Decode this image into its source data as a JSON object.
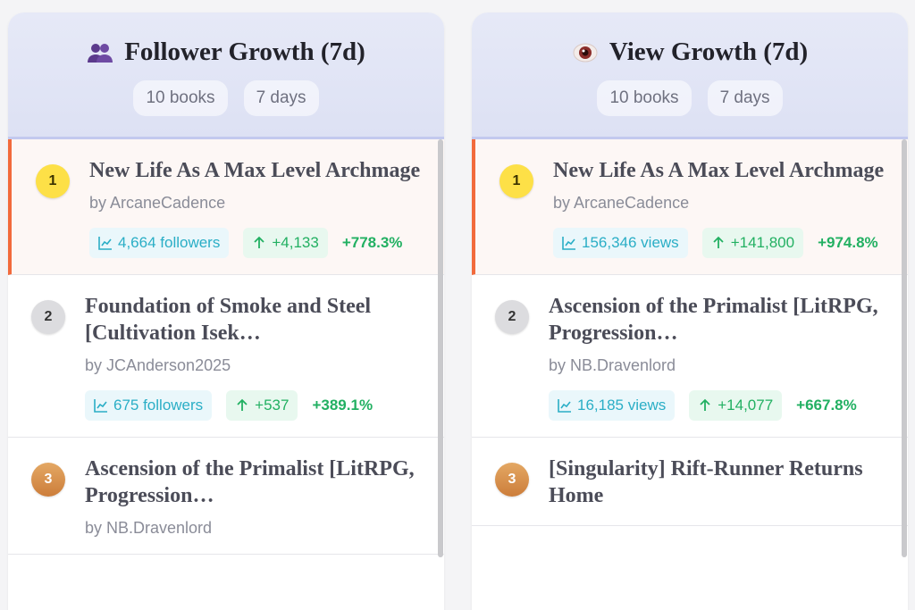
{
  "panels": [
    {
      "title": "Follower Growth (7d)",
      "icon": "people-icon",
      "chips": [
        "10 books",
        "7 days"
      ],
      "items": [
        {
          "rank": "1",
          "title": "New Life As A Max Level Archmage",
          "author": "by ArcaneCadence",
          "total": "4,664 followers",
          "gain": "+4,133",
          "pct": "+778.3%"
        },
        {
          "rank": "2",
          "title": "Foundation of Smoke and Steel [Cultivation Isek…",
          "author": "by JCAnderson2025",
          "total": "675 followers",
          "gain": "+537",
          "pct": "+389.1%"
        },
        {
          "rank": "3",
          "title": "Ascension of the Primalist [LitRPG, Progression…",
          "author": "by NB.Dravenlord",
          "total": "",
          "gain": "",
          "pct": ""
        }
      ]
    },
    {
      "title": "View Growth (7d)",
      "icon": "eye-icon",
      "chips": [
        "10 books",
        "7 days"
      ],
      "items": [
        {
          "rank": "1",
          "title": "New Life As A Max Level Archmage",
          "author": "by ArcaneCadence",
          "total": "156,346 views",
          "gain": "+141,800",
          "pct": "+974.8%"
        },
        {
          "rank": "2",
          "title": "Ascension of the Primalist [LitRPG, Progression…",
          "author": "by NB.Dravenlord",
          "total": "16,185 views",
          "gain": "+14,077",
          "pct": "+667.8%"
        },
        {
          "rank": "3",
          "title": "[Singularity] Rift-Runner Returns Home",
          "author": "",
          "total": "",
          "gain": "",
          "pct": ""
        }
      ]
    }
  ],
  "colors": {
    "top_accent": "#f26a3c",
    "total_text": "#2aaec6",
    "gain_text": "#22b062",
    "header_bg": "#dde1f4"
  }
}
